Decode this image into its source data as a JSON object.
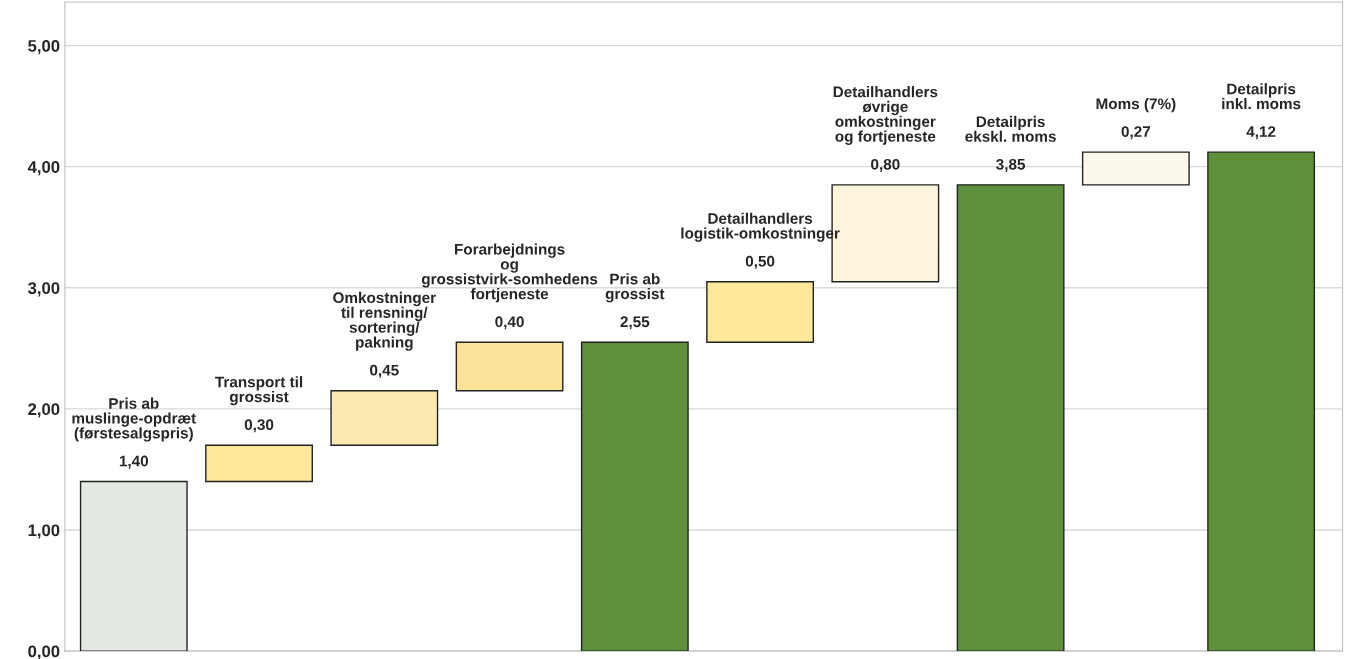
{
  "chart_data": {
    "type": "bar",
    "categories": [
      "Pris ab muslinge-opdræt (førstesalgspris)",
      "Transport til grossist",
      "Omkostninger til rensning/ sortering/ pakning",
      "Forarbejdnings og grossistvirk-somhedens fortjeneste",
      "Pris ab grossist",
      "Detailhandlers logistik-omkostninger",
      "Detailhandlers øvrige omkostninger og fortjeneste",
      "Detailpris ekskl. moms",
      "Moms (7%)",
      "Detailpris inkl. moms"
    ],
    "values": [
      1.4,
      0.3,
      0.45,
      0.4,
      2.55,
      0.5,
      0.8,
      3.85,
      0.27,
      4.12
    ],
    "base": [
      0,
      1.4,
      1.7,
      2.15,
      0,
      2.55,
      3.05,
      0,
      3.85,
      0
    ],
    "colors": [
      "#e4e9e2",
      "#fde79a",
      "#fdeab0",
      "#fde29a",
      "#5e903b",
      "#fde79a",
      "#fdf4dc",
      "#5e903b",
      "#fdf8ec",
      "#5e903b"
    ],
    "value_labels": [
      "1,40",
      "0,30",
      "0,45",
      "0,40",
      "2,55",
      "0,50",
      "0,80",
      "3,85",
      "0,27",
      "4,12"
    ],
    "ylim": [
      0,
      5.36
    ],
    "yticks": [
      {
        "value": 0,
        "label": "0,00"
      },
      {
        "value": 1,
        "label": "1,00"
      },
      {
        "value": 2,
        "label": "2,00"
      },
      {
        "value": 3,
        "label": "3,00"
      },
      {
        "value": 4,
        "label": "4,00"
      },
      {
        "value": 5,
        "label": "5,00"
      }
    ],
    "grid": "y",
    "legend": false
  }
}
